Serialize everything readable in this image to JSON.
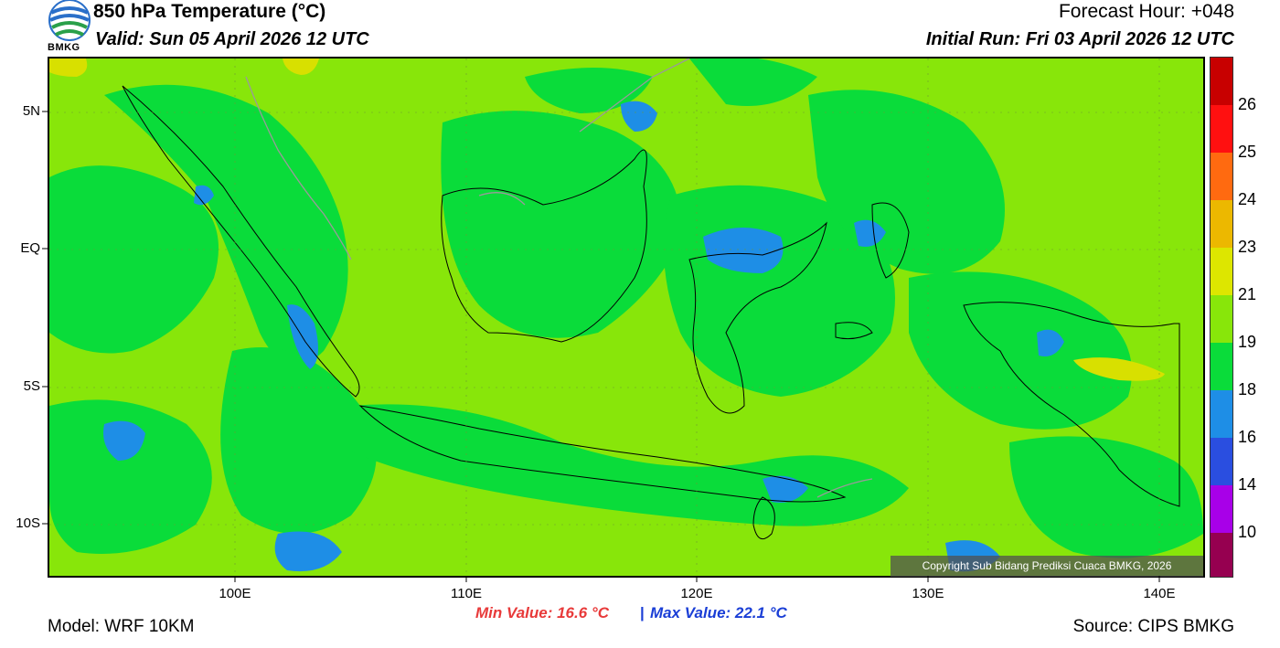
{
  "header": {
    "title": "850 hPa Temperature (°C)",
    "valid": "Valid: Sun 05 April 2026 12 UTC",
    "forecast_hour": "Forecast Hour: +048",
    "initial_run": "Initial Run: Fri 03 April 2026 12 UTC",
    "logo_text": "BMKG"
  },
  "map": {
    "lat_labels": [
      "5N",
      "EQ",
      "5S",
      "10S"
    ],
    "lon_labels": [
      "100E",
      "110E",
      "120E",
      "130E",
      "140E"
    ],
    "copyright": "Copyright Sub Bidang Prediksi Cuaca BMKG, 2026",
    "colors": {
      "bg_21": "#88e60a",
      "band_19": "#0adc3a",
      "band_18": "#1e8ee6",
      "band_23": "#d8e000",
      "coastline": "#000000",
      "neighbor_border": "#9a9a9a"
    }
  },
  "colorbar": {
    "labels": [
      "26",
      "25",
      "24",
      "23",
      "21",
      "19",
      "18",
      "16",
      "14",
      "10"
    ],
    "colors": [
      "#c80000",
      "#ff1010",
      "#ff6a10",
      "#ecb800",
      "#dde600",
      "#88e60a",
      "#0adc3a",
      "#1e8ee6",
      "#2a4ee0",
      "#a800e8",
      "#960050"
    ]
  },
  "stats": {
    "min": "Min Value: 16.6 °C",
    "separator": "|",
    "max": "Max Value: 22.1 °C"
  },
  "footer": {
    "model": "Model: WRF 10KM",
    "source": "Source: CIPS BMKG"
  }
}
